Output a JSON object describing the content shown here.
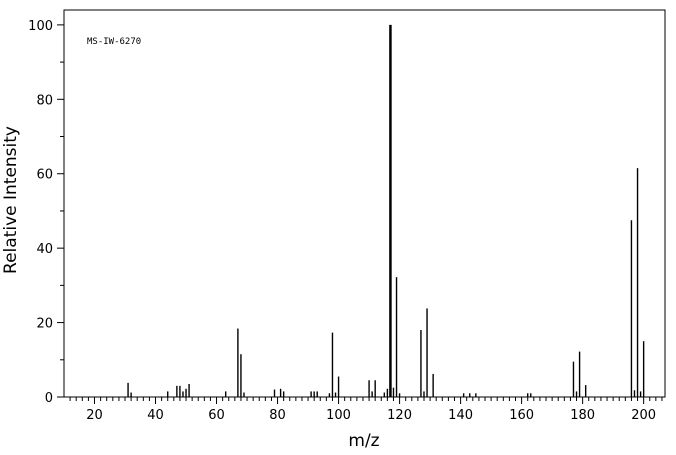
{
  "chart_data": {
    "type": "bar",
    "subtype": "mass-spectrum",
    "annotation": "MS-IW-6270",
    "xlabel": "m/z",
    "ylabel": "Relative Intensity",
    "xlim": [
      10,
      207
    ],
    "ylim": [
      0,
      104
    ],
    "x_ticks": [
      20,
      40,
      60,
      80,
      100,
      120,
      140,
      160,
      180,
      200
    ],
    "x_tick_labels": [
      "20",
      "40",
      "60",
      "80",
      "100",
      "120",
      "140",
      "160",
      "180",
      "200"
    ],
    "y_ticks": [
      0,
      20,
      40,
      60,
      80,
      100
    ],
    "y_tick_labels": [
      "0",
      "20",
      "40",
      "60",
      "80",
      "100"
    ],
    "grid": false,
    "legend": "none",
    "bar_color": "#000000",
    "x": [
      31,
      32,
      44,
      47,
      48,
      49,
      50,
      51,
      63,
      67,
      68,
      69,
      79,
      81,
      82,
      91,
      92,
      93,
      97,
      98,
      99,
      100,
      110,
      111,
      112,
      115,
      116,
      117,
      118,
      119,
      120,
      127,
      128,
      129,
      131,
      141,
      143,
      145,
      162,
      163,
      177,
      178,
      179,
      181,
      196,
      197,
      198,
      199,
      200
    ],
    "values": [
      3.8,
      1.2,
      1.5,
      3.0,
      3.0,
      1.5,
      2.2,
      3.5,
      1.5,
      18.4,
      11.5,
      1.2,
      2.0,
      2.2,
      1.5,
      1.5,
      1.5,
      1.5,
      1.0,
      17.3,
      1.2,
      5.5,
      4.5,
      1.5,
      4.5,
      1.2,
      2.2,
      100,
      2.5,
      32.2,
      1.0,
      18.0,
      1.5,
      23.8,
      6.2,
      1.0,
      1.0,
      1.0,
      1.0,
      1.0,
      9.5,
      1.5,
      12.2,
      3.2,
      47.5,
      1.8,
      61.5,
      1.5,
      15.0
    ]
  }
}
